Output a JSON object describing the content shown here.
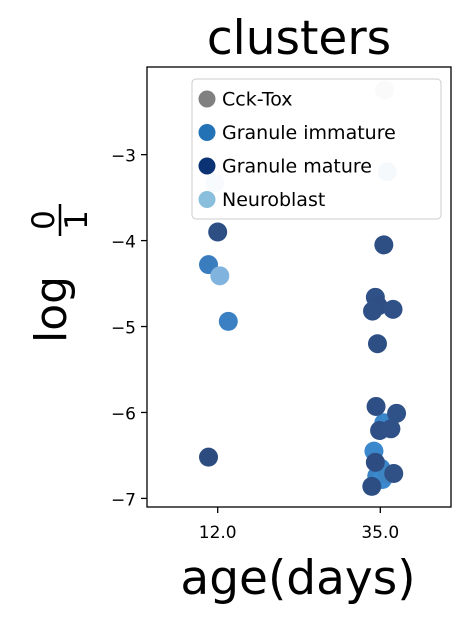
{
  "chart_data": {
    "type": "scatter",
    "title": "clusters",
    "xlabel": "age(days)",
    "ylabel_base": "log",
    "ylabel_num": "0",
    "ylabel_den": "1",
    "x_categories": [
      "12.0",
      "35.0"
    ],
    "x_positions": [
      12.0,
      35.0
    ],
    "xlim": [
      2.0,
      45.0
    ],
    "ylim": [
      -7.1,
      -1.98
    ],
    "yticks": [
      -7,
      -6,
      -5,
      -4,
      -3
    ],
    "ytick_labels": [
      "−7",
      "−6",
      "−5",
      "−4",
      "−3"
    ],
    "grid": false,
    "legend_position": "upper-right",
    "series": [
      {
        "name": "Cck-Tox",
        "color": "#7f7f7f",
        "legend_color": "#808080",
        "points": [
          {
            "x": 35.6,
            "y": -2.25,
            "color": "#e3e3e3"
          }
        ]
      },
      {
        "name": "Granule immature",
        "color": "#2676b8",
        "legend_color": "#2372b6",
        "points": [
          {
            "x": 10.7,
            "y": -4.28,
            "color": "#3a7dbf"
          },
          {
            "x": 13.5,
            "y": -4.94,
            "color": "#3a80c2"
          },
          {
            "x": 34.1,
            "y": -6.45,
            "color": "#3b88cc"
          },
          {
            "x": 35.5,
            "y": -6.12,
            "color": "#3a86ca"
          },
          {
            "x": 35.1,
            "y": -6.65,
            "color": "#3c86c9"
          },
          {
            "x": 34.5,
            "y": -6.74,
            "color": "#3a83c6"
          },
          {
            "x": 35.3,
            "y": -6.78,
            "color": "#3b8ad0"
          },
          {
            "x": 36.0,
            "y": -6.72,
            "color": "#3d84c3"
          }
        ]
      },
      {
        "name": "Granule mature",
        "color": "#08306b",
        "legend_color": "#0b3374",
        "points": [
          {
            "x": 12.0,
            "y": -3.9,
            "color": "#2d4f83"
          },
          {
            "x": 10.7,
            "y": -6.52,
            "color": "#2c4c80"
          },
          {
            "x": 35.5,
            "y": -4.05,
            "color": "#2e4f84"
          },
          {
            "x": 34.3,
            "y": -4.66,
            "color": "#2f5187"
          },
          {
            "x": 34.7,
            "y": -4.76,
            "color": "#2e4e84"
          },
          {
            "x": 33.9,
            "y": -4.82,
            "color": "#2e5085"
          },
          {
            "x": 36.8,
            "y": -4.8,
            "color": "#2f5187"
          },
          {
            "x": 34.6,
            "y": -5.2,
            "color": "#2d4f84"
          },
          {
            "x": 34.4,
            "y": -5.93,
            "color": "#2e4f85"
          },
          {
            "x": 37.3,
            "y": -6.01,
            "color": "#2f5288"
          },
          {
            "x": 34.9,
            "y": -6.21,
            "color": "#2e5086"
          },
          {
            "x": 36.5,
            "y": -6.19,
            "color": "#2f5187"
          },
          {
            "x": 34.3,
            "y": -6.58,
            "color": "#2d4d82"
          },
          {
            "x": 36.9,
            "y": -6.71,
            "color": "#2f5186"
          },
          {
            "x": 33.8,
            "y": -6.86,
            "color": "#2d4e83"
          }
        ]
      },
      {
        "name": "Neuroblast",
        "color": "#85bcdc",
        "legend_color": "#89bedc",
        "points": [
          {
            "x": 11.6,
            "y": -3.33,
            "color": "#dbe8f4"
          },
          {
            "x": 12.3,
            "y": -4.41,
            "color": "#80b4de"
          },
          {
            "x": 36.0,
            "y": -3.2,
            "color": "#cfe1f0"
          }
        ]
      }
    ]
  }
}
